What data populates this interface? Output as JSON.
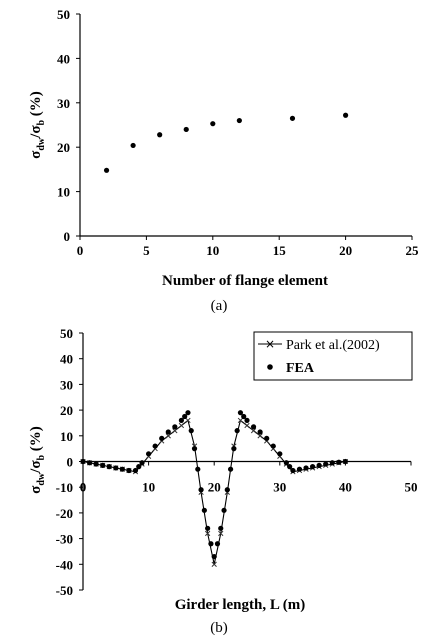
{
  "chart_data": [
    {
      "type": "scatter",
      "panel_label": "(a)",
      "xlabel": "Number of flange element",
      "ylabel": "σdw/σb (%)",
      "ylabel_parts": {
        "main": "σ",
        "sub1": "dw",
        "slash": "/",
        "main2": "σ",
        "sub2": "b",
        "unit": " (%)"
      },
      "xlim": [
        0,
        25
      ],
      "ylim": [
        0,
        50
      ],
      "xticks": [
        0,
        5,
        10,
        15,
        20,
        25
      ],
      "yticks": [
        0,
        10,
        20,
        30,
        40,
        50
      ],
      "grid": false,
      "series": [
        {
          "x": [
            2,
            4,
            6,
            8,
            10,
            12,
            16,
            20
          ],
          "y": [
            14.8,
            20.4,
            22.8,
            24.0,
            25.3,
            26.0,
            26.5,
            27.2
          ]
        }
      ]
    },
    {
      "type": "line",
      "panel_label": "(b)",
      "xlabel": "Girder length, L (m)",
      "ylabel": "σdw/σb (%)",
      "ylabel_parts": {
        "main": "σ",
        "sub1": "dw",
        "slash": "/",
        "main2": "σ",
        "sub2": "b",
        "unit": " (%)"
      },
      "xlim": [
        0,
        50
      ],
      "ylim": [
        -50,
        50
      ],
      "xticks": [
        0,
        10,
        20,
        30,
        40,
        50
      ],
      "yticks": [
        -50,
        -40,
        -30,
        -20,
        -10,
        0,
        10,
        20,
        30,
        40,
        50
      ],
      "grid": false,
      "legend_position": "top-right",
      "series": [
        {
          "name": "Park et al.(2002)",
          "marker": "x",
          "line": true,
          "x": [
            0,
            1,
            2,
            3,
            4,
            5,
            6,
            7,
            8,
            9,
            10,
            11,
            12,
            13,
            14,
            15,
            16,
            17,
            18,
            19,
            20,
            21,
            22,
            23,
            24,
            25,
            26,
            27,
            28,
            29,
            30,
            31,
            32,
            33,
            34,
            35,
            36,
            37,
            38,
            39,
            40
          ],
          "y": [
            0,
            -0.5,
            -1,
            -1.5,
            -2,
            -2.5,
            -3,
            -3.5,
            -4,
            -1,
            2,
            5,
            8,
            10,
            12,
            14,
            16,
            6,
            -12,
            -28,
            -40,
            -28,
            -12,
            6,
            16,
            14,
            12,
            10,
            8,
            5,
            2,
            -1,
            -4,
            -3.5,
            -3,
            -2.5,
            -2,
            -1.5,
            -1,
            -0.5,
            0
          ]
        },
        {
          "name": "FEA",
          "marker": "dot",
          "line": false,
          "x": [
            0,
            1,
            2,
            3,
            4,
            5,
            6,
            7,
            8,
            8.5,
            9,
            10,
            11,
            12,
            13,
            14,
            15,
            15.5,
            16,
            16.5,
            17,
            17.5,
            18,
            18.5,
            19,
            19.5,
            20,
            20.5,
            21,
            21.5,
            22,
            22.5,
            23,
            23.5,
            24,
            24.5,
            25,
            26,
            27,
            28,
            29,
            30,
            31,
            31.5,
            32,
            33,
            34,
            35,
            36,
            37,
            38,
            39,
            40
          ],
          "y": [
            0,
            -0.5,
            -1,
            -1.5,
            -2,
            -2.5,
            -3,
            -3.5,
            -3.5,
            -2,
            -0.5,
            3,
            6,
            9,
            11.5,
            13.5,
            16,
            17.5,
            19,
            12,
            5,
            -3,
            -11,
            -19,
            -26,
            -32,
            -37,
            -32,
            -26,
            -19,
            -11,
            -3,
            5,
            12,
            19,
            17.5,
            16,
            13.5,
            11.5,
            9,
            6,
            3,
            -0.5,
            -2,
            -3.5,
            -3,
            -2.5,
            -2,
            -1.5,
            -1,
            -0.5,
            -0.3,
            0
          ]
        }
      ]
    }
  ]
}
